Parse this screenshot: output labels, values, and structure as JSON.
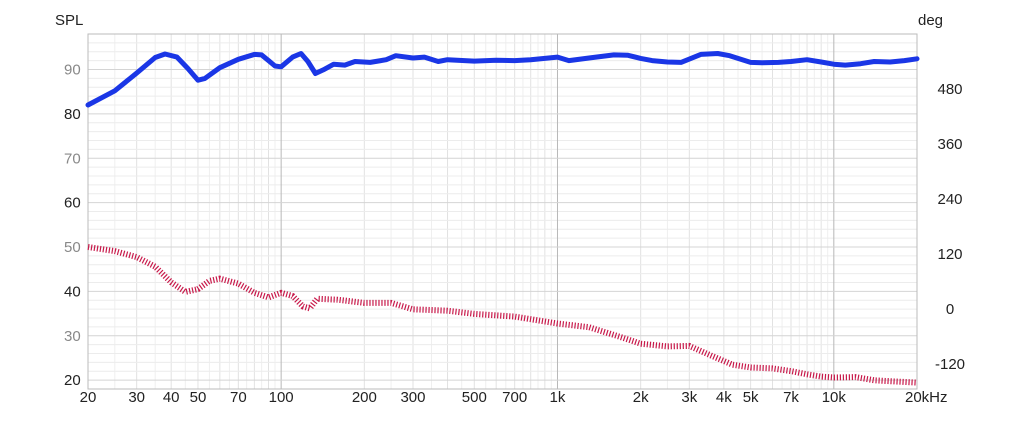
{
  "chart_data": {
    "type": "line",
    "title": "",
    "x_scale": "log",
    "xlim": [
      20,
      20000
    ],
    "x_ticks": [
      {
        "value": 20,
        "label": "20"
      },
      {
        "value": 30,
        "label": "30"
      },
      {
        "value": 40,
        "label": "40"
      },
      {
        "value": 50,
        "label": "50"
      },
      {
        "value": 70,
        "label": "70"
      },
      {
        "value": 100,
        "label": "100"
      },
      {
        "value": 200,
        "label": "200"
      },
      {
        "value": 300,
        "label": "300"
      },
      {
        "value": 500,
        "label": "500"
      },
      {
        "value": 700,
        "label": "700"
      },
      {
        "value": 1000,
        "label": "1k"
      },
      {
        "value": 2000,
        "label": "2k"
      },
      {
        "value": 3000,
        "label": "3k"
      },
      {
        "value": 4000,
        "label": "4k"
      },
      {
        "value": 5000,
        "label": "5k"
      },
      {
        "value": 7000,
        "label": "7k"
      },
      {
        "value": 10000,
        "label": "10k"
      },
      {
        "value": 20000,
        "label": "20kHz"
      }
    ],
    "ylabel_left": "SPL",
    "ylim_left": [
      18,
      98
    ],
    "y_ticks_left": [
      {
        "value": 90,
        "label": "90",
        "grey": true
      },
      {
        "value": 80,
        "label": "80",
        "grey": false
      },
      {
        "value": 70,
        "label": "70",
        "grey": true
      },
      {
        "value": 60,
        "label": "60",
        "grey": false
      },
      {
        "value": 50,
        "label": "50",
        "grey": true
      },
      {
        "value": 40,
        "label": "40",
        "grey": false
      },
      {
        "value": 30,
        "label": "30",
        "grey": true
      },
      {
        "value": 20,
        "label": "20",
        "grey": false
      }
    ],
    "ylabel_right": "deg",
    "ylim_right": [
      -175,
      600
    ],
    "y_ticks_right": [
      {
        "value": 480,
        "label": "480"
      },
      {
        "value": 360,
        "label": "360"
      },
      {
        "value": 240,
        "label": "240"
      },
      {
        "value": 120,
        "label": "120"
      },
      {
        "value": 0,
        "label": "0"
      },
      {
        "value": -120,
        "label": "-120"
      }
    ],
    "grid": true,
    "legend": "none",
    "series": [
      {
        "axis": "left",
        "color": "#1a36e6",
        "style": "solid",
        "points": [
          [
            20,
            82
          ],
          [
            25,
            85.2
          ],
          [
            30,
            89.2
          ],
          [
            35,
            92.7
          ],
          [
            38,
            93.5
          ],
          [
            42,
            92.8
          ],
          [
            46,
            90.2
          ],
          [
            50,
            87.6
          ],
          [
            53,
            88
          ],
          [
            60,
            90.4
          ],
          [
            70,
            92.3
          ],
          [
            80,
            93.4
          ],
          [
            85,
            93.3
          ],
          [
            90,
            92
          ],
          [
            95,
            90.8
          ],
          [
            100,
            90.6
          ],
          [
            110,
            92.8
          ],
          [
            118,
            93.6
          ],
          [
            125,
            91.8
          ],
          [
            133,
            89.1
          ],
          [
            142,
            89.9
          ],
          [
            155,
            91.2
          ],
          [
            170,
            91
          ],
          [
            185,
            91.8
          ],
          [
            210,
            91.6
          ],
          [
            240,
            92.2
          ],
          [
            260,
            93.1
          ],
          [
            300,
            92.6
          ],
          [
            330,
            92.8
          ],
          [
            370,
            91.8
          ],
          [
            400,
            92.2
          ],
          [
            500,
            91.9
          ],
          [
            600,
            92.1
          ],
          [
            700,
            92
          ],
          [
            800,
            92.2
          ],
          [
            1000,
            92.8
          ],
          [
            1100,
            92
          ],
          [
            1300,
            92.6
          ],
          [
            1600,
            93.3
          ],
          [
            1800,
            93.2
          ],
          [
            2000,
            92.5
          ],
          [
            2200,
            92
          ],
          [
            2500,
            91.7
          ],
          [
            2800,
            91.6
          ],
          [
            3300,
            93.4
          ],
          [
            3800,
            93.6
          ],
          [
            4200,
            93.1
          ],
          [
            5000,
            91.6
          ],
          [
            5500,
            91.5
          ],
          [
            6300,
            91.6
          ],
          [
            7000,
            91.8
          ],
          [
            8000,
            92.2
          ],
          [
            9000,
            91.7
          ],
          [
            10000,
            91.2
          ],
          [
            11000,
            91
          ],
          [
            12500,
            91.3
          ],
          [
            14000,
            91.8
          ],
          [
            16000,
            91.7
          ],
          [
            18000,
            92
          ],
          [
            20000,
            92.4
          ]
        ]
      },
      {
        "axis": "right",
        "color": "#c8194a",
        "style": "dotted",
        "points": [
          [
            20,
            135
          ],
          [
            25,
            126
          ],
          [
            30,
            113
          ],
          [
            35,
            92
          ],
          [
            40,
            58
          ],
          [
            45,
            37
          ],
          [
            50,
            43
          ],
          [
            55,
            61
          ],
          [
            60,
            66
          ],
          [
            70,
            55
          ],
          [
            80,
            35
          ],
          [
            90,
            25
          ],
          [
            100,
            35
          ],
          [
            110,
            28
          ],
          [
            120,
            5
          ],
          [
            127,
            1
          ],
          [
            135,
            22
          ],
          [
            160,
            20
          ],
          [
            200,
            13
          ],
          [
            250,
            13
          ],
          [
            300,
            -1
          ],
          [
            400,
            -4
          ],
          [
            500,
            -11
          ],
          [
            700,
            -17
          ],
          [
            1000,
            -32
          ],
          [
            1300,
            -40
          ],
          [
            1700,
            -62
          ],
          [
            2000,
            -76
          ],
          [
            2500,
            -82
          ],
          [
            3000,
            -81
          ],
          [
            3600,
            -102
          ],
          [
            4300,
            -122
          ],
          [
            5000,
            -128
          ],
          [
            6000,
            -130
          ],
          [
            7000,
            -136
          ],
          [
            8000,
            -143
          ],
          [
            9000,
            -148
          ],
          [
            10000,
            -150
          ],
          [
            12000,
            -149
          ],
          [
            14000,
            -156
          ],
          [
            16000,
            -158
          ],
          [
            20000,
            -161
          ]
        ]
      }
    ]
  }
}
